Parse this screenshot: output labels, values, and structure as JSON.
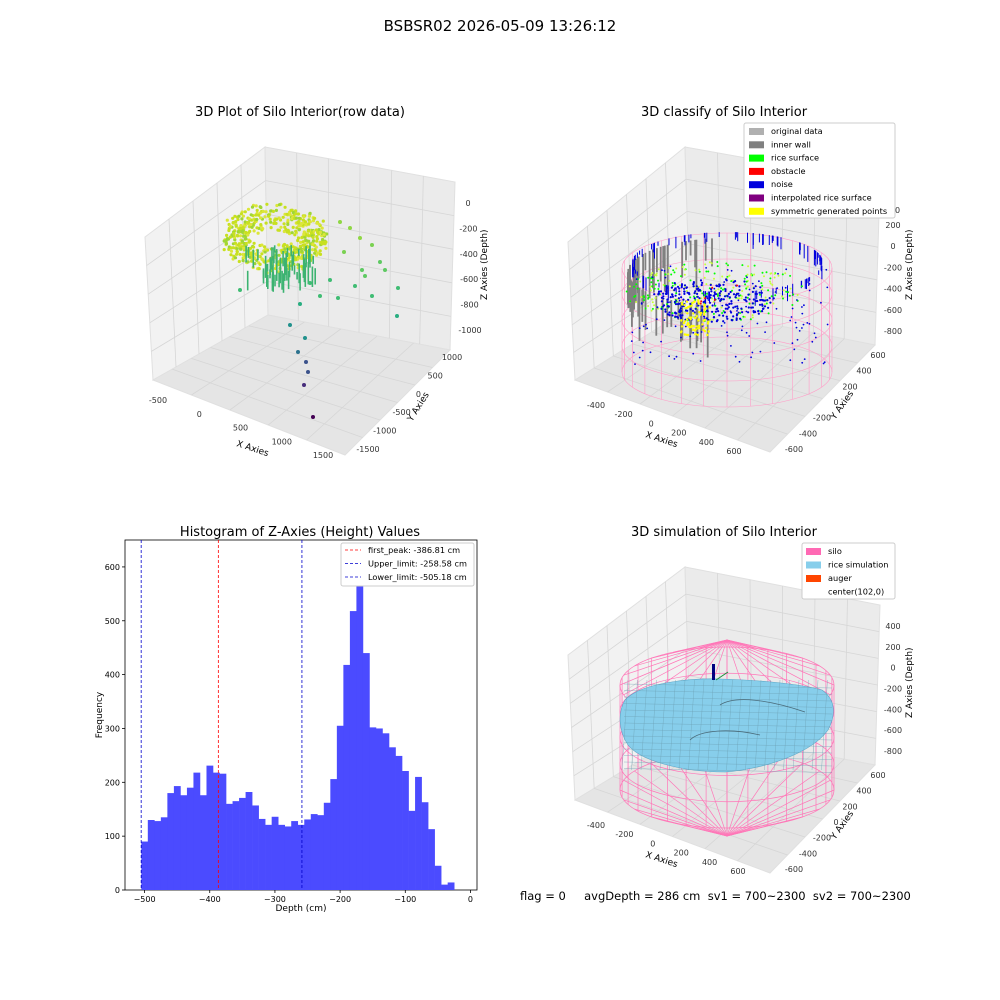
{
  "suptitle": "BSBSR02 2026-05-09 13:26:12",
  "footer": "flag = 0     avgDepth = 286 cm  sv1 = 700~2300  sv2 = 700~2300",
  "plots": {
    "raw": {
      "title": "3D Plot of Silo Interior(row data)",
      "x_label": "X Axies",
      "y_label": "Y Axies",
      "z_label": "Z Axies (Depth)",
      "x_ticks": [
        "-500",
        "0",
        "500",
        "1000",
        "1500"
      ],
      "y_ticks": [
        "-1500",
        "-1000",
        "-500",
        "0",
        "500",
        "1000"
      ],
      "z_ticks": [
        "0",
        "-200",
        "-400",
        "-600",
        "-800",
        "-1000"
      ]
    },
    "classify": {
      "title": "3D classify of Silo Interior",
      "x_label": "X Axies",
      "y_label": "Y Axies",
      "z_label": "Z Axies (Depth)",
      "x_ticks": [
        "-400",
        "-200",
        "0",
        "200",
        "400",
        "600"
      ],
      "y_ticks": [
        "-600",
        "-400",
        "-200",
        "0",
        "200",
        "400",
        "600"
      ],
      "z_ticks": [
        "200",
        "0",
        "-200",
        "-400",
        "-600",
        "-800"
      ],
      "z_top_partial": "0",
      "legend": [
        {
          "label": "original data",
          "color": "#b0b0b0"
        },
        {
          "label": "inner wall",
          "color": "#808080"
        },
        {
          "label": "rice surface",
          "color": "#00ff00"
        },
        {
          "label": "obstacle",
          "color": "#ff0000"
        },
        {
          "label": "noise",
          "color": "#0000dd"
        },
        {
          "label": "interpolated rice surface",
          "color": "#800080"
        },
        {
          "label": "symmetric generated points",
          "color": "#ffff00"
        }
      ]
    },
    "simulation": {
      "title": "3D simulation of Silo Interior",
      "x_label": "X Axies",
      "y_label": "Y Axies",
      "z_label": "Z Axies (Depth)",
      "x_ticks": [
        "-400",
        "-200",
        "0",
        "200",
        "400",
        "600"
      ],
      "y_ticks": [
        "-600",
        "-400",
        "-200",
        "0",
        "200",
        "400",
        "600"
      ],
      "z_ticks": [
        "400",
        "200",
        "0",
        "-200",
        "-400",
        "-600",
        "-800"
      ],
      "legend": [
        {
          "label": "silo",
          "color": "#ff69b4"
        },
        {
          "label": "rice simulation",
          "color": "#87ceeb"
        },
        {
          "label": "auger",
          "color": "#ff4500"
        },
        {
          "label": "center(102,0)",
          "color": ""
        }
      ]
    }
  },
  "chart_data": {
    "type": "bar",
    "title": "Histogram of Z-Axies (Height) Values",
    "xlabel": "Depth (cm)",
    "ylabel": "Frequency",
    "xlim": [
      -530,
      10
    ],
    "ylim": [
      0,
      650
    ],
    "x_ticks": [
      -500,
      -400,
      -300,
      -200,
      -100,
      0
    ],
    "x_tick_labels": [
      "−500",
      "−400",
      "−300",
      "−200",
      "−100",
      "0"
    ],
    "y_ticks": [
      0,
      100,
      200,
      300,
      400,
      500,
      600
    ],
    "bin_start": -505,
    "bin_width": 10,
    "values": [
      90,
      130,
      128,
      135,
      180,
      193,
      176,
      190,
      218,
      176,
      231,
      218,
      216,
      160,
      165,
      171,
      182,
      157,
      132,
      121,
      136,
      121,
      118,
      128,
      121,
      131,
      141,
      139,
      162,
      206,
      305,
      418,
      518,
      625,
      440,
      302,
      300,
      291,
      265,
      249,
      221,
      147,
      210,
      163,
      113,
      45,
      10,
      14
    ],
    "lines": [
      {
        "label": "first_peak: -386.81 cm",
        "x": -386.81,
        "color": "#ff0000"
      },
      {
        "label": "Upper_limit: -258.58 cm",
        "x": -258.58,
        "color": "#0000cc"
      },
      {
        "label": "Lower_limit: -505.18 cm",
        "x": -505.18,
        "color": "#0000cc"
      }
    ],
    "bar_color": "#4b4bff",
    "legend_position": "top-right"
  }
}
